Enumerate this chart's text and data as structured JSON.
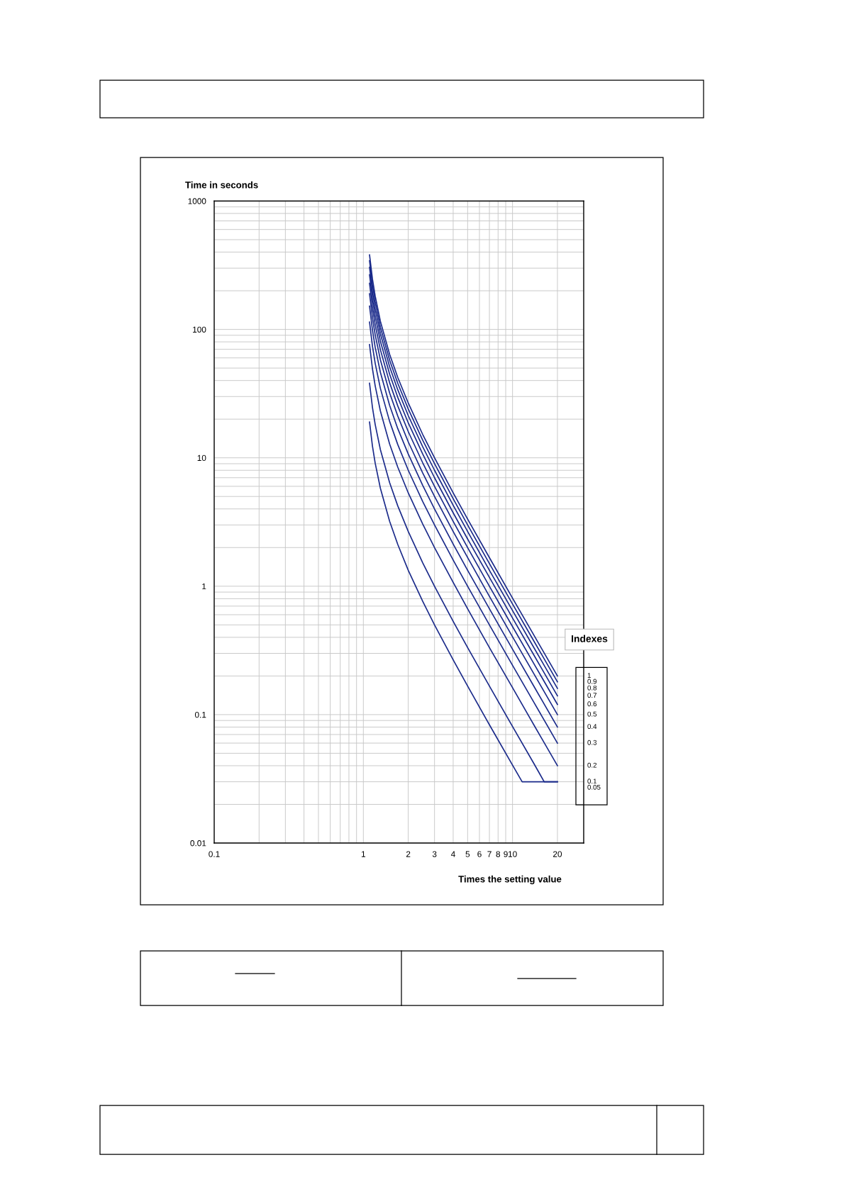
{
  "chart_data": {
    "type": "line",
    "ylabel": "Time in seconds",
    "xlabel": "Times the setting value",
    "legend_title": "Indexes",
    "log": "xy",
    "grid": true,
    "marker": "none",
    "line_style": "solid",
    "xlim": [
      0.1,
      30
    ],
    "ylim": [
      0.01,
      1000
    ],
    "xticks": [
      0.1,
      1,
      2,
      3,
      4,
      5,
      6,
      7,
      8,
      9,
      10,
      20
    ],
    "yticks": [
      0.01,
      0.1,
      1,
      10,
      100,
      1000
    ],
    "series": [
      {
        "name": "1",
        "color": "#1a2a8a",
        "x": [
          1.1,
          1.15,
          1.2,
          1.3,
          1.5,
          1.7,
          2,
          2.5,
          3,
          4,
          5,
          7,
          10,
          14,
          20
        ],
        "values": [
          381,
          248,
          182,
          116,
          64,
          42.3,
          26.7,
          15.2,
          10,
          5.33,
          3.33,
          1.67,
          0.808,
          0.41,
          0.2
        ]
      },
      {
        "name": "0.9",
        "color": "#1a2a8a",
        "x": [
          1.1,
          1.15,
          1.2,
          1.3,
          1.5,
          1.7,
          2,
          2.5,
          3,
          4,
          5,
          7,
          10,
          14,
          20
        ],
        "values": [
          343,
          223,
          164,
          104,
          57.6,
          38.1,
          24,
          13.7,
          9,
          4.8,
          3,
          1.5,
          0.727,
          0.369,
          0.18
        ]
      },
      {
        "name": "0.8",
        "color": "#1a2a8a",
        "x": [
          1.1,
          1.15,
          1.2,
          1.3,
          1.5,
          1.7,
          2,
          2.5,
          3,
          4,
          5,
          7,
          10,
          14,
          20
        ],
        "values": [
          305,
          198,
          145,
          92.8,
          51.2,
          33.9,
          21.3,
          12.2,
          8,
          4.27,
          2.67,
          1.33,
          0.646,
          0.328,
          0.16
        ]
      },
      {
        "name": "0.7",
        "color": "#1a2a8a",
        "x": [
          1.1,
          1.15,
          1.2,
          1.3,
          1.5,
          1.7,
          2,
          2.5,
          3,
          4,
          5,
          7,
          10,
          14,
          20
        ],
        "values": [
          267,
          174,
          127,
          81.2,
          44.8,
          29.6,
          18.7,
          10.7,
          7,
          3.73,
          2.33,
          1.17,
          0.566,
          0.287,
          0.14
        ]
      },
      {
        "name": "0.6",
        "color": "#1a2a8a",
        "x": [
          1.1,
          1.15,
          1.2,
          1.3,
          1.5,
          1.7,
          2,
          2.5,
          3,
          4,
          5,
          7,
          10,
          14,
          20
        ],
        "values": [
          229,
          149,
          109,
          69.6,
          38.4,
          25.4,
          16,
          9.14,
          6,
          3.2,
          2,
          1,
          0.485,
          0.246,
          0.12
        ]
      },
      {
        "name": "0.5",
        "color": "#1a2a8a",
        "x": [
          1.1,
          1.15,
          1.2,
          1.3,
          1.5,
          1.7,
          2,
          2.5,
          3,
          4,
          5,
          7,
          10,
          14,
          20
        ],
        "values": [
          190,
          124,
          90.9,
          58,
          32,
          21.2,
          13.3,
          7.62,
          5,
          2.67,
          1.67,
          0.833,
          0.404,
          0.205,
          0.1
        ]
      },
      {
        "name": "0.4",
        "color": "#1a2a8a",
        "x": [
          1.1,
          1.15,
          1.2,
          1.3,
          1.5,
          1.7,
          2,
          2.5,
          3,
          4,
          5,
          7,
          10,
          14,
          20
        ],
        "values": [
          152,
          99.2,
          72.7,
          46.4,
          25.6,
          16.9,
          10.7,
          6.1,
          4,
          2.13,
          1.33,
          0.667,
          0.323,
          0.164,
          0.08
        ]
      },
      {
        "name": "0.3",
        "color": "#1a2a8a",
        "x": [
          1.1,
          1.15,
          1.2,
          1.3,
          1.5,
          1.7,
          2,
          2.5,
          3,
          4,
          5,
          7,
          10,
          14,
          20
        ],
        "values": [
          114,
          74.4,
          54.5,
          34.8,
          19.2,
          12.7,
          8,
          4.57,
          3,
          1.6,
          1,
          0.5,
          0.242,
          0.123,
          0.06
        ]
      },
      {
        "name": "0.2",
        "color": "#1a2a8a",
        "x": [
          1.1,
          1.15,
          1.2,
          1.3,
          1.5,
          1.7,
          2,
          2.5,
          3,
          4,
          5,
          7,
          10,
          14,
          20
        ],
        "values": [
          76.2,
          49.6,
          36.4,
          23.2,
          12.8,
          8.47,
          5.33,
          3.05,
          2,
          1.07,
          0.667,
          0.333,
          0.162,
          0.082,
          0.04
        ]
      },
      {
        "name": "0.1",
        "color": "#1a2a8a",
        "x": [
          1.1,
          1.15,
          1.2,
          1.3,
          1.5,
          1.7,
          2,
          2.5,
          3,
          4,
          5,
          7,
          10,
          14,
          16.3,
          20
        ],
        "values": [
          38.1,
          24.8,
          18.2,
          11.6,
          6.4,
          4.23,
          2.67,
          1.52,
          1,
          0.533,
          0.333,
          0.167,
          0.0808,
          0.041,
          0.03,
          0.03
        ]
      },
      {
        "name": "0.05",
        "color": "#1a2a8a",
        "x": [
          1.1,
          1.15,
          1.2,
          1.3,
          1.5,
          1.7,
          2,
          2.5,
          3,
          4,
          5,
          7,
          10,
          11.6,
          20
        ],
        "values": [
          19,
          12.4,
          9.09,
          5.8,
          3.2,
          2.12,
          1.33,
          0.762,
          0.5,
          0.267,
          0.167,
          0.0833,
          0.0404,
          0.03,
          0.03
        ]
      }
    ]
  }
}
